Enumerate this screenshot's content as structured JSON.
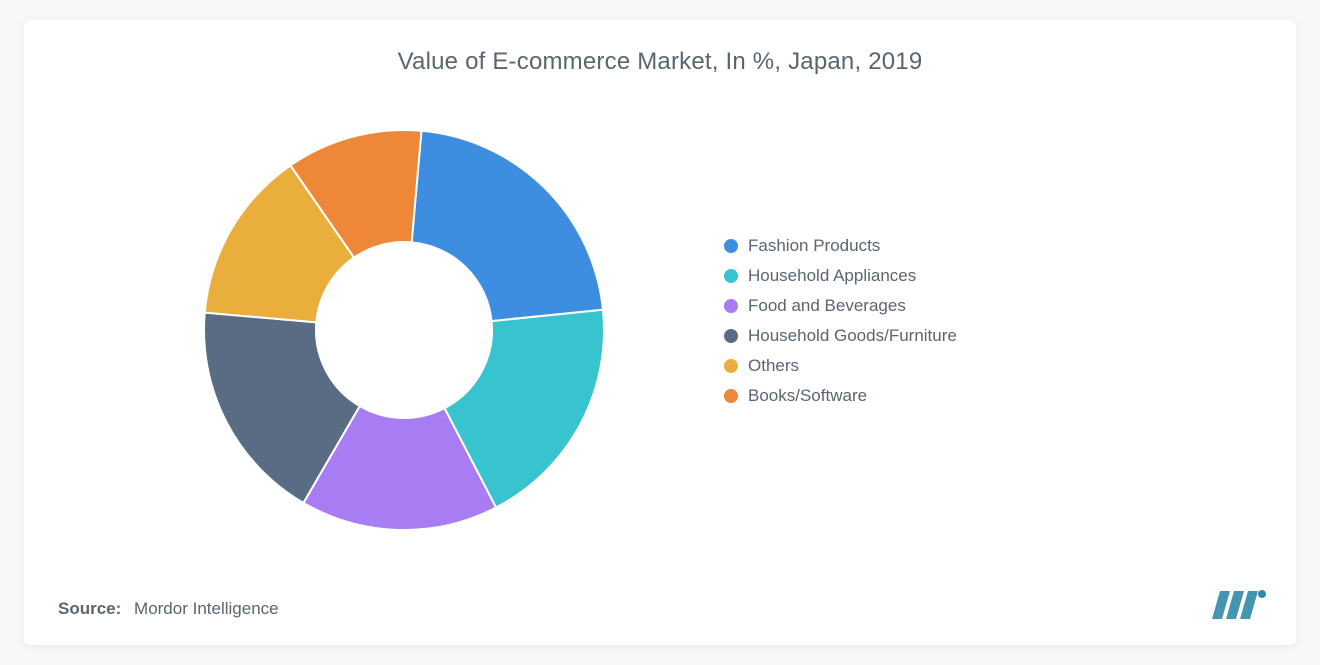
{
  "background_color": "#f7f8f9",
  "card_background": "#ffffff",
  "title": {
    "text": "Value of E-commerce Market, In %, Japan, 2019",
    "fontsize": 24,
    "color": "#5a6570"
  },
  "chart": {
    "type": "donut",
    "inner_radius_ratio": 0.44,
    "outer_radius": 200,
    "start_angle_deg": 5,
    "rotation_direction": "clockwise",
    "slices": [
      {
        "label": "Fashion Products",
        "value": 22,
        "color": "#3d8ee0"
      },
      {
        "label": "Household Appliances",
        "value": 19,
        "color": "#38c4ce"
      },
      {
        "label": "Food and Beverages",
        "value": 16,
        "color": "#a87cf2"
      },
      {
        "label": "Household Goods/Furniture",
        "value": 18,
        "color": "#5a6c84"
      },
      {
        "label": "Others",
        "value": 14,
        "color": "#e9ae3b"
      },
      {
        "label": "Books/Software",
        "value": 11,
        "color": "#ef8739"
      }
    ],
    "center_fill": "#ffffff",
    "slice_stroke": "#ffffff",
    "slice_stroke_width": 2
  },
  "legend": {
    "fontsize": 17,
    "text_color": "#5a6570",
    "swatch_shape": "circle",
    "swatch_size": 14
  },
  "source": {
    "label": "Source:",
    "text": "Mordor Intelligence",
    "fontsize": 17,
    "color": "#5a6570"
  },
  "logo": {
    "bar_color": "#2f8aa8",
    "dot_color": "#2f8aa8"
  }
}
